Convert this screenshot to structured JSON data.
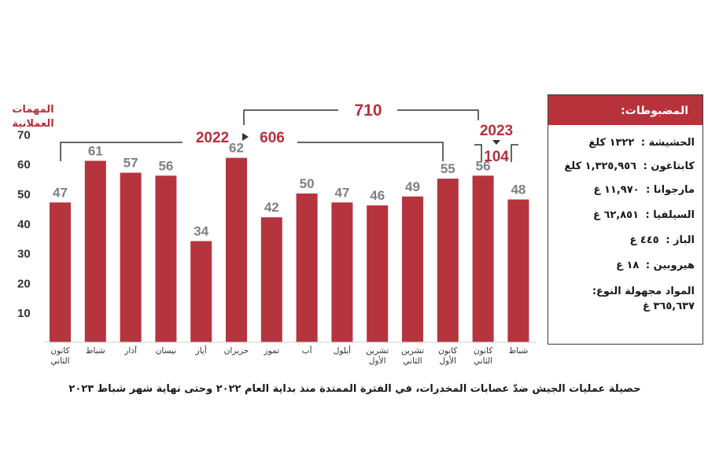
{
  "chart_data": {
    "type": "bar",
    "ylabel": "المهمات العملانية",
    "ylim": [
      0,
      70
    ],
    "yticks": [
      10,
      20,
      30,
      40,
      50,
      60,
      70
    ],
    "categories": [
      "كانون الثاني",
      "شباط",
      "آذار",
      "نيسان",
      "أيار",
      "حزيران",
      "تموز",
      "آب",
      "أيلول",
      "تشرين الأول",
      "تشرين الثاني",
      "كانون الأول",
      "كانون الثاني",
      "شباط"
    ],
    "values": [
      47,
      61,
      57,
      56,
      34,
      62,
      42,
      50,
      47,
      46,
      49,
      55,
      56,
      48
    ],
    "annotations": {
      "total": "710",
      "year_2022_label": "2022",
      "year_2022_total": "606",
      "year_2023_label": "2023",
      "year_2023_total": "104"
    },
    "colors": {
      "bar": "#b5343e",
      "value_label": "#7f7f7f",
      "annotation": "#b5303c"
    }
  },
  "seizures": {
    "title": "المضبوطات:",
    "items": [
      {
        "name": "الحشيشة :",
        "qty": "١٣٢٢ كلغ"
      },
      {
        "name": "كابتاغون :",
        "qty": "١,٣٢٥,٩٥٦ كلغ"
      },
      {
        "name": "مارجوانا :",
        "qty": "١١,٩٧٠ غ"
      },
      {
        "name": "السيلفيا :",
        "qty": "٦٢,٨٥١ غ"
      },
      {
        "name": "الباز :",
        "qty": "٤٤٥ غ"
      },
      {
        "name": "هيروبين :",
        "qty": "١٨ غ"
      }
    ],
    "unknown_label": "المواد مجهولة النوع:",
    "unknown_qty": "٣٦٥,٦٣٧ غ"
  },
  "caption": "حصيلة عمليات الجيش ضدّ عصابات المخدرات، في الفترة الممتدة منذ بداية العام ٢٠٢٢ وحتى نهاية شهر شباط ٢٠٢٣"
}
